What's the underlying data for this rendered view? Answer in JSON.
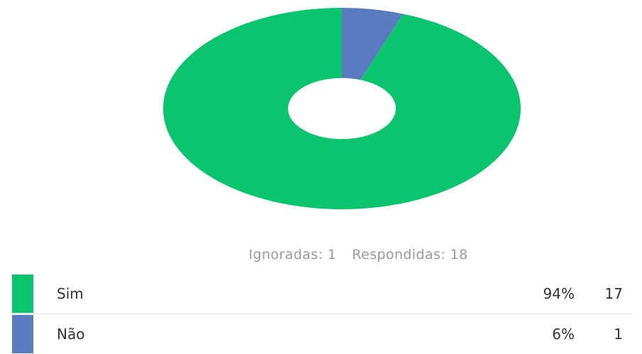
{
  "chart_data": {
    "type": "pie",
    "donut": true,
    "categories": [
      "Sim",
      "Não"
    ],
    "values": [
      17,
      1
    ],
    "percentages": [
      "94%",
      "6%"
    ],
    "colors": [
      "#0bc46e",
      "#5b7bc0"
    ],
    "legend_placement": "bottom"
  },
  "summary": {
    "ignored": "Ignoradas: 1",
    "answered": "Respondidas: 18"
  },
  "legend": [
    {
      "label": "Sim",
      "percent": "94%",
      "count": "17",
      "color": "#0bc46e"
    },
    {
      "label": "Não",
      "percent": "6%",
      "count": "1",
      "color": "#5b7bc0"
    }
  ]
}
